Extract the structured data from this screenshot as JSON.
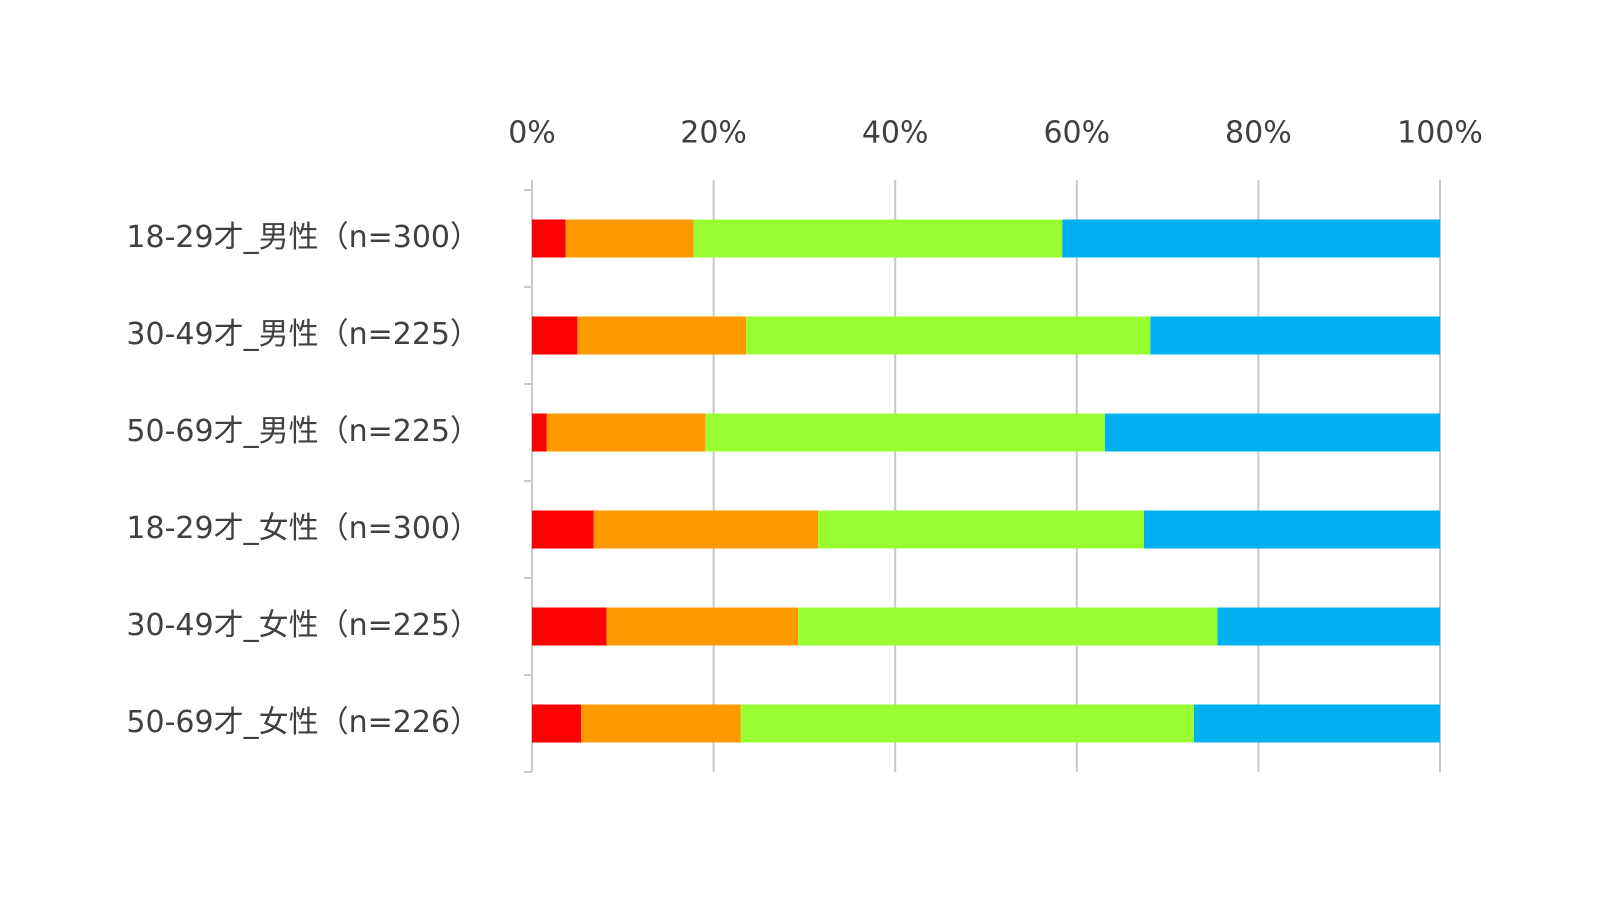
{
  "chart_data": {
    "type": "stacked-bar-horizontal",
    "categories": [
      "18-29才_男性（n=300）",
      "30-49才_男性（n=225）",
      "50-69才_男性（n=225）",
      "18-29才_女性（n=300）",
      "30-49才_女性（n=225）",
      "50-69才_女性（n=226）"
    ],
    "series": [
      {
        "color": "#ff0000",
        "values": [
          3.7,
          5.0,
          1.6,
          6.8,
          8.2,
          5.4
        ]
      },
      {
        "color": "#ff9900",
        "values": [
          14.1,
          18.6,
          17.5,
          24.7,
          21.1,
          17.6
        ]
      },
      {
        "color": "#99ff33",
        "values": [
          40.6,
          44.5,
          44.0,
          35.9,
          46.2,
          49.9
        ]
      },
      {
        "color": "#00b0f0",
        "values": [
          41.6,
          31.9,
          36.9,
          32.6,
          24.5,
          27.1
        ]
      }
    ],
    "xlim": [
      0,
      100
    ],
    "xticks": [
      {
        "value": 0,
        "label": "0%"
      },
      {
        "value": 20,
        "label": "20%"
      },
      {
        "value": 40,
        "label": "40%"
      },
      {
        "value": 60,
        "label": "60%"
      },
      {
        "value": 80,
        "label": "80%"
      },
      {
        "value": 100,
        "label": "100%"
      }
    ],
    "grid": true
  }
}
